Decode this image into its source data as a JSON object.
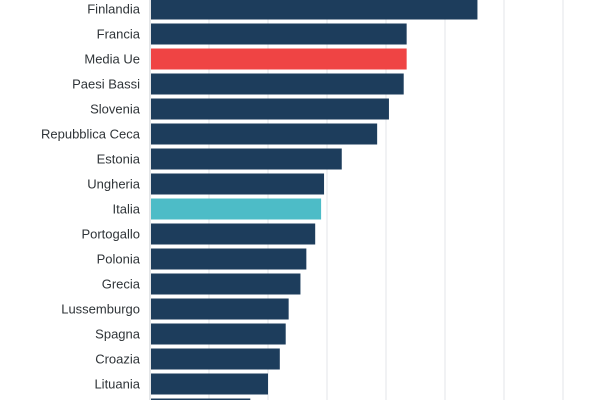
{
  "chart_data": {
    "type": "bar",
    "orientation": "horizontal",
    "categories": [
      "Finlandia",
      "Francia",
      "Media Ue",
      "Paesi Bassi",
      "Slovenia",
      "Repubblica Ceca",
      "Estonia",
      "Ungheria",
      "Italia",
      "Portogallo",
      "Polonia",
      "Grecia",
      "Lussemburgo",
      "Spagna",
      "Croazia",
      "Lituania",
      ""
    ],
    "values": [
      55.5,
      43.5,
      43.5,
      43.0,
      40.5,
      38.5,
      32.5,
      29.5,
      29.0,
      28.0,
      26.5,
      25.5,
      23.5,
      23.0,
      22.0,
      20.0,
      17.0
    ],
    "colors": {
      "default": "#1d3d5c",
      "highlight_eu": "#ef4444",
      "highlight_italy": "#4dbcc7"
    },
    "highlights": {
      "Media Ue": "highlight_eu",
      "Italia": "highlight_italy"
    },
    "xlim": [
      0,
      70
    ],
    "grid": true,
    "gridlines_at": [
      0,
      10,
      20,
      30,
      40,
      50,
      60,
      70
    ],
    "title": "",
    "xlabel": "",
    "ylabel": ""
  }
}
